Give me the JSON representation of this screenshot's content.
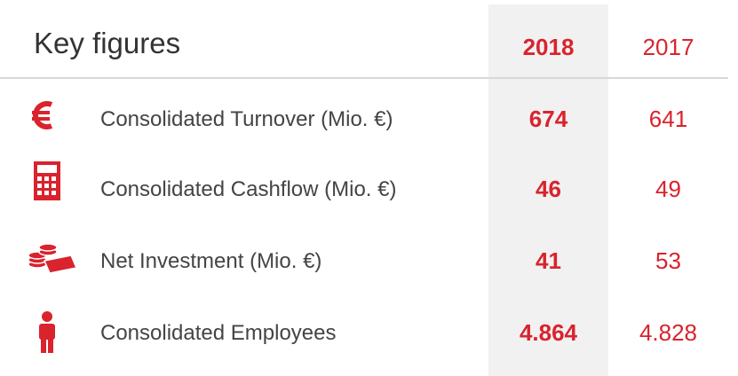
{
  "header": {
    "title": "Key figures",
    "columns": [
      "2018",
      "2017"
    ]
  },
  "table": {
    "rows": [
      {
        "label": "Consolidated Turnover (Mio. €)",
        "values": [
          "674",
          "641"
        ]
      },
      {
        "label": "Consolidated Cashflow (Mio. €)",
        "values": [
          "46",
          "49"
        ]
      },
      {
        "label": "Net Investment (Mio. €)",
        "values": [
          "41",
          "53"
        ]
      },
      {
        "label": "Consolidated Employees",
        "values": [
          "4.864",
          "4.828"
        ]
      }
    ]
  }
}
